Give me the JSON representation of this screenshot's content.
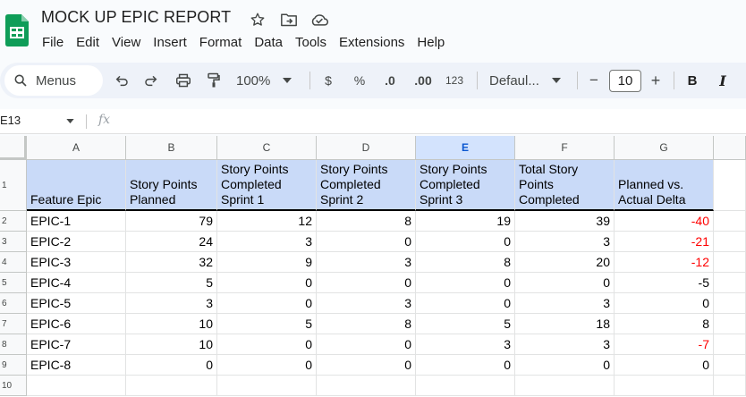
{
  "doc": {
    "title": "MOCK UP EPIC REPORT",
    "menu": [
      "File",
      "Edit",
      "View",
      "Insert",
      "Format",
      "Data",
      "Tools",
      "Extensions",
      "Help"
    ]
  },
  "toolbar": {
    "search_label": "Menus",
    "zoom": "100%",
    "currency": "$",
    "percent": "%",
    "decrease_decimal": ".0",
    "increase_decimal": ".00",
    "number_format": "123",
    "font": "Defaul...",
    "font_size": "10",
    "minus": "−",
    "plus": "+",
    "bold": "B",
    "italic": "I"
  },
  "formula": {
    "cell_ref": "E13",
    "fx": "fx"
  },
  "colors": {
    "header_fill": "#c9daf8",
    "negative": "#ff0000",
    "selected_col": "#d3e3fd"
  },
  "sheet": {
    "columns": [
      "A",
      "B",
      "C",
      "D",
      "E",
      "F",
      "G"
    ],
    "selected_column": "E",
    "row_numbers": [
      "1",
      "2",
      "3",
      "4",
      "5",
      "6",
      "7",
      "8",
      "9",
      "10"
    ],
    "headers": [
      "Feature Epic",
      "Story Points Planned",
      "Story Points Completed Sprint 1",
      "Story Points Completed Sprint 2",
      "Story Points Completed Sprint 3",
      "Total Story Points Completed",
      "Planned vs. Actual Delta"
    ],
    "rows": [
      [
        "EPIC-1",
        "79",
        "12",
        "8",
        "19",
        "39",
        "-40"
      ],
      [
        "EPIC-2",
        "24",
        "3",
        "0",
        "0",
        "3",
        "-21"
      ],
      [
        "EPIC-3",
        "32",
        "9",
        "3",
        "8",
        "20",
        "-12"
      ],
      [
        "EPIC-4",
        "5",
        "0",
        "0",
        "0",
        "0",
        "-5"
      ],
      [
        "EPIC-5",
        "3",
        "0",
        "3",
        "0",
        "3",
        "0"
      ],
      [
        "EPIC-6",
        "10",
        "5",
        "8",
        "5",
        "18",
        "8"
      ],
      [
        "EPIC-7",
        "10",
        "0",
        "0",
        "3",
        "3",
        "-7"
      ],
      [
        "EPIC-8",
        "0",
        "0",
        "0",
        "0",
        "0",
        "0"
      ]
    ],
    "red_cells": [
      "0-6",
      "1-6",
      "2-6",
      "6-6"
    ]
  }
}
